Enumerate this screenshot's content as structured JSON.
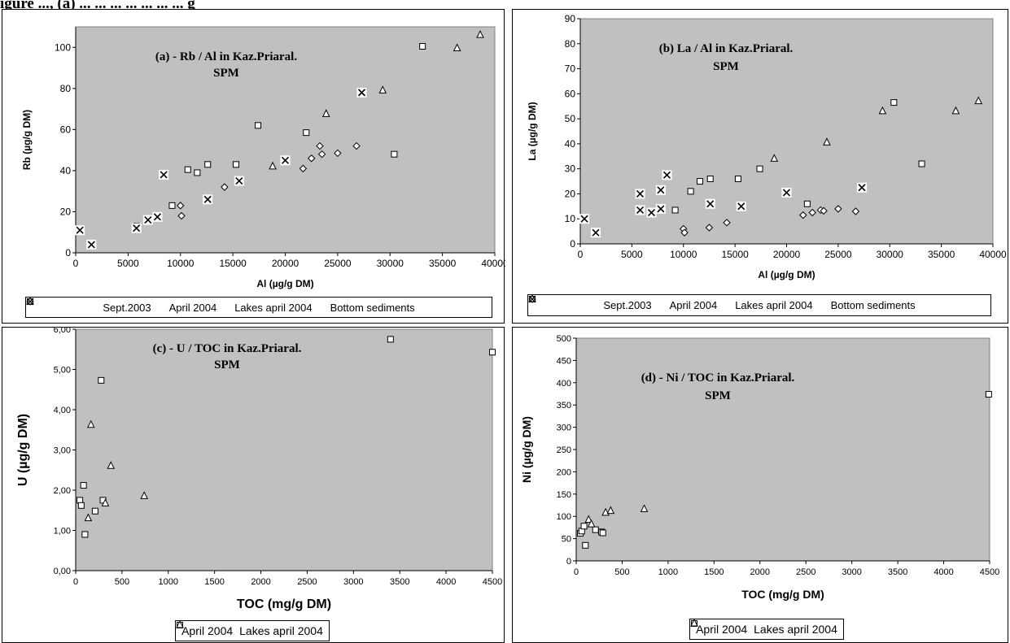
{
  "caption": "igure ..., (a) ... ... ... ... ... ... ... g",
  "panels": [
    {
      "id": "a",
      "title": "(a) - Rb / Al in Kaz.Priaral.",
      "subtitle": "SPM",
      "xlabel": "Al (µg/g DM)",
      "ylabel": "Rb (µg/g DM)",
      "xticks": [
        "0",
        "5000",
        "10000",
        "15000",
        "20000",
        "25000",
        "30000",
        "35000",
        "40000"
      ],
      "yticks": [
        "0",
        "20",
        "40",
        "60",
        "80",
        "100"
      ],
      "legend": [
        "Sept.2003",
        "April 2004",
        "Lakes april 2004",
        "Bottom sediments"
      ]
    },
    {
      "id": "b",
      "title": "(b) La / Al in Kaz.Priaral.",
      "subtitle": "SPM",
      "xlabel": "Al (µg/g DM)",
      "ylabel": "La (µg/g DM)",
      "xticks": [
        "0",
        "5000",
        "10000",
        "15000",
        "20000",
        "25000",
        "30000",
        "35000",
        "40000"
      ],
      "yticks": [
        "0",
        "10",
        "20",
        "30",
        "40",
        "50",
        "60",
        "70",
        "80",
        "90"
      ],
      "legend": [
        "Sept.2003",
        "April 2004",
        "Lakes april 2004",
        "Bottom sediments"
      ]
    },
    {
      "id": "c",
      "title": "(c) - U / TOC in Kaz.Priaral.",
      "subtitle": "SPM",
      "xlabel": "TOC (mg/g DM)",
      "ylabel": "U (µg/g DM)",
      "xticks": [
        "0",
        "500",
        "1000",
        "1500",
        "2000",
        "2500",
        "3000",
        "3500",
        "4000",
        "4500"
      ],
      "yticks": [
        "0,00",
        "1,00",
        "2,00",
        "3,00",
        "4,00",
        "5,00",
        "6,00"
      ],
      "legend": [
        "April 2004",
        "Lakes april 2004"
      ]
    },
    {
      "id": "d",
      "title": "(d) - Ni / TOC in Kaz.Priaral.",
      "subtitle": "SPM",
      "xlabel": "TOC (mg/g DM)",
      "ylabel": "Ni (µg/g DM)",
      "xticks": [
        "0",
        "500",
        "1000",
        "1500",
        "2000",
        "2500",
        "3000",
        "3500",
        "4000",
        "4500"
      ],
      "yticks": [
        "0",
        "50",
        "100",
        "150",
        "200",
        "250",
        "300",
        "350",
        "400",
        "450",
        "500"
      ],
      "legend": [
        "April 2004",
        "Lakes april 2004"
      ]
    }
  ],
  "chart_data": [
    {
      "type": "scatter",
      "title": "(a) - Rb / Al in Kaz.Priaral. SPM",
      "xlabel": "Al (µg/g DM)",
      "ylabel": "Rb (µg/g DM)",
      "xlim": [
        0,
        40000
      ],
      "ylim": [
        0,
        110
      ],
      "grid": false,
      "legend": "bottom",
      "series": [
        {
          "name": "Sept.2003",
          "marker": "diamond",
          "points": [
            [
              10000,
              23
            ],
            [
              10100,
              18
            ],
            [
              14200,
              32
            ],
            [
              21700,
              41
            ],
            [
              22500,
              46
            ],
            [
              23300,
              52
            ],
            [
              23500,
              48
            ],
            [
              25000,
              48.5
            ],
            [
              26800,
              52
            ]
          ]
        },
        {
          "name": "April 2004",
          "marker": "square",
          "points": [
            [
              5800,
              13
            ],
            [
              9200,
              23
            ],
            [
              10700,
              40.5
            ],
            [
              11600,
              39
            ],
            [
              12600,
              43
            ],
            [
              15300,
              43
            ],
            [
              17400,
              62
            ],
            [
              22000,
              58.5
            ],
            [
              30400,
              48
            ],
            [
              33100,
              100.5
            ]
          ]
        },
        {
          "name": "Lakes april 2004",
          "marker": "triangle",
          "points": [
            [
              18800,
              42
            ],
            [
              23900,
              67.5
            ],
            [
              29300,
              79
            ],
            [
              36400,
              99.5
            ],
            [
              38600,
              106
            ]
          ]
        },
        {
          "name": "Bottom sediments",
          "marker": "x-box",
          "points": [
            [
              400,
              11
            ],
            [
              1500,
              4
            ],
            [
              5800,
              12
            ],
            [
              6900,
              16
            ],
            [
              7800,
              17.5
            ],
            [
              8400,
              38
            ],
            [
              12600,
              26
            ],
            [
              15600,
              35
            ],
            [
              20000,
              45
            ],
            [
              27300,
              78
            ]
          ]
        }
      ]
    },
    {
      "type": "scatter",
      "title": "(b) La / Al in Kaz.Priaral. SPM",
      "xlabel": "Al (µg/g DM)",
      "ylabel": "La (µg/g DM)",
      "xlim": [
        0,
        40000
      ],
      "ylim": [
        0,
        90
      ],
      "grid": false,
      "legend": "bottom",
      "series": [
        {
          "name": "Sept.2003",
          "marker": "diamond",
          "points": [
            [
              10000,
              6
            ],
            [
              10100,
              4.5
            ],
            [
              12500,
              6.5
            ],
            [
              14200,
              8.5
            ],
            [
              21600,
              11.5
            ],
            [
              22500,
              12.5
            ],
            [
              23300,
              13.5
            ],
            [
              23600,
              13.2
            ],
            [
              25000,
              14
            ],
            [
              26700,
              13
            ]
          ]
        },
        {
          "name": "April 2004",
          "marker": "square",
          "points": [
            [
              9200,
              13.5
            ],
            [
              10700,
              21
            ],
            [
              11600,
              25
            ],
            [
              12600,
              26
            ],
            [
              15300,
              26
            ],
            [
              17400,
              30
            ],
            [
              22000,
              16
            ],
            [
              30400,
              56.5
            ],
            [
              33100,
              32
            ]
          ]
        },
        {
          "name": "Lakes april 2004",
          "marker": "triangle",
          "points": [
            [
              18800,
              34
            ],
            [
              23900,
              40.5
            ],
            [
              29300,
              53
            ],
            [
              36400,
              53
            ],
            [
              38600,
              57
            ]
          ]
        },
        {
          "name": "Bottom sediments",
          "marker": "x-box",
          "points": [
            [
              400,
              10
            ],
            [
              1500,
              4.5
            ],
            [
              5800,
              20
            ],
            [
              5800,
              13.5
            ],
            [
              6900,
              12.5
            ],
            [
              7800,
              21.5
            ],
            [
              7800,
              14
            ],
            [
              8400,
              27.5
            ],
            [
              12600,
              16
            ],
            [
              15600,
              15
            ],
            [
              20000,
              20.5
            ],
            [
              27300,
              22.5
            ]
          ]
        }
      ]
    },
    {
      "type": "scatter",
      "title": "(c) - U / TOC in Kaz.Priaral. SPM",
      "xlabel": "TOC (mg/g DM)",
      "ylabel": "U (µg/g DM)",
      "xlim": [
        0,
        4500
      ],
      "ylim": [
        0,
        6
      ],
      "grid": false,
      "legend": "bottom",
      "series": [
        {
          "name": "April 2004",
          "marker": "square",
          "points": [
            [
              45,
              1.75
            ],
            [
              60,
              1.62
            ],
            [
              85,
              2.12
            ],
            [
              100,
              0.9
            ],
            [
              210,
              1.48
            ],
            [
              275,
              4.73
            ],
            [
              295,
              1.75
            ],
            [
              3400,
              5.75
            ],
            [
              4500,
              5.43
            ]
          ]
        },
        {
          "name": "Lakes april 2004",
          "marker": "triangle",
          "points": [
            [
              135,
              1.3
            ],
            [
              165,
              3.62
            ],
            [
              320,
              1.67
            ],
            [
              380,
              2.6
            ],
            [
              740,
              1.85
            ]
          ]
        }
      ]
    },
    {
      "type": "scatter",
      "title": "(d) - Ni / TOC in Kaz.Priaral. SPM",
      "xlabel": "TOC (mg/g DM)",
      "ylabel": "Ni (µg/g DM)",
      "xlim": [
        0,
        4500
      ],
      "ylim": [
        0,
        500
      ],
      "grid": false,
      "legend": "bottom",
      "series": [
        {
          "name": "April 2004",
          "marker": "square",
          "points": [
            [
              45,
              62
            ],
            [
              60,
              67
            ],
            [
              85,
              78
            ],
            [
              100,
              35
            ],
            [
              210,
              70
            ],
            [
              275,
              65
            ],
            [
              290,
              63
            ],
            [
              4490,
              374
            ]
          ]
        },
        {
          "name": "Lakes april 2004",
          "marker": "triangle",
          "points": [
            [
              135,
              92
            ],
            [
              165,
              82
            ],
            [
              320,
              108
            ],
            [
              375,
              112
            ],
            [
              740,
              116
            ]
          ]
        }
      ]
    }
  ]
}
